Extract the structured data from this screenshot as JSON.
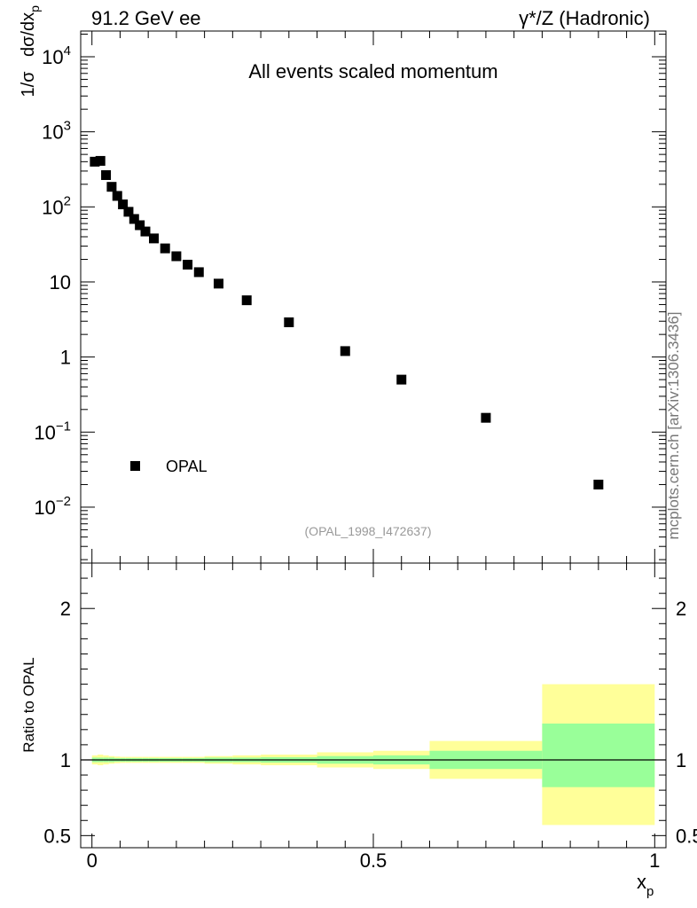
{
  "header": {
    "left": "91.2 GeV ee",
    "right": "γ*/Z (Hadronic)"
  },
  "side_label": "mcplots.cern.ch [arXiv:1306.3436]",
  "chart_data": [
    {
      "type": "scatter",
      "panel": "main",
      "title": "All events scaled momentum",
      "ylabel_parts": [
        "1/σ",
        "dσ/dx",
        "p"
      ],
      "yscale": "log",
      "ylim": [
        0.0018,
        22000
      ],
      "xlim": [
        -0.02,
        1.02
      ],
      "y_ticks": [
        {
          "value": 0.01,
          "base": "10",
          "exp": "−2"
        },
        {
          "value": 0.1,
          "base": "10",
          "exp": "−1"
        },
        {
          "value": 1,
          "base": "1",
          "exp": ""
        },
        {
          "value": 10,
          "base": "10",
          "exp": ""
        },
        {
          "value": 100,
          "base": "10",
          "exp": "2"
        },
        {
          "value": 1000,
          "base": "10",
          "exp": "3"
        },
        {
          "value": 10000,
          "base": "10",
          "exp": "4"
        }
      ],
      "series": [
        {
          "name": "OPAL",
          "marker": "square",
          "points": [
            {
              "x": 0.005,
              "y": 400
            },
            {
              "x": 0.015,
              "y": 410
            },
            {
              "x": 0.025,
              "y": 265
            },
            {
              "x": 0.035,
              "y": 185
            },
            {
              "x": 0.045,
              "y": 140
            },
            {
              "x": 0.055,
              "y": 108
            },
            {
              "x": 0.065,
              "y": 86
            },
            {
              "x": 0.075,
              "y": 69
            },
            {
              "x": 0.085,
              "y": 57
            },
            {
              "x": 0.095,
              "y": 47
            },
            {
              "x": 0.11,
              "y": 38
            },
            {
              "x": 0.13,
              "y": 28
            },
            {
              "x": 0.15,
              "y": 22
            },
            {
              "x": 0.17,
              "y": 17
            },
            {
              "x": 0.19,
              "y": 13.5
            },
            {
              "x": 0.225,
              "y": 9.5
            },
            {
              "x": 0.275,
              "y": 5.7
            },
            {
              "x": 0.35,
              "y": 2.9
            },
            {
              "x": 0.45,
              "y": 1.2
            },
            {
              "x": 0.55,
              "y": 0.5
            },
            {
              "x": 0.7,
              "y": 0.155
            },
            {
              "x": 0.9,
              "y": 0.02
            }
          ]
        }
      ],
      "legend": {
        "label": "OPAL",
        "position": "bottom-left"
      },
      "annotation": "(OPAL_1998_I472637)"
    },
    {
      "type": "area",
      "panel": "ratio",
      "ylabel": "Ratio to OPAL",
      "ylim": [
        0.42,
        2.3
      ],
      "xlim": [
        -0.02,
        1.02
      ],
      "xlabel": "x",
      "xlabel_sub": "p",
      "x_ticks": [
        {
          "value": 0,
          "label": "0"
        },
        {
          "value": 0.5,
          "label": "0.5"
        },
        {
          "value": 1,
          "label": "1"
        }
      ],
      "y_ticks": [
        {
          "value": 0.5,
          "label": "0.5"
        },
        {
          "value": 1,
          "label": "1"
        },
        {
          "value": 2,
          "label": "2"
        }
      ],
      "reference_line": 1,
      "band_colors": {
        "inner": "#99ff99",
        "outer": "#ffff99"
      },
      "bands": [
        {
          "x0": 0.0,
          "x1": 0.01,
          "inner": [
            0.985,
            1.015
          ],
          "outer": [
            0.97,
            1.03
          ]
        },
        {
          "x0": 0.01,
          "x1": 0.02,
          "inner": [
            0.985,
            1.015
          ],
          "outer": [
            0.965,
            1.035
          ]
        },
        {
          "x0": 0.02,
          "x1": 0.03,
          "inner": [
            0.985,
            1.015
          ],
          "outer": [
            0.97,
            1.03
          ]
        },
        {
          "x0": 0.03,
          "x1": 0.04,
          "inner": [
            0.985,
            1.015
          ],
          "outer": [
            0.975,
            1.025
          ]
        },
        {
          "x0": 0.04,
          "x1": 0.05,
          "inner": [
            0.988,
            1.012
          ],
          "outer": [
            0.978,
            1.022
          ]
        },
        {
          "x0": 0.05,
          "x1": 0.06,
          "inner": [
            0.988,
            1.012
          ],
          "outer": [
            0.98,
            1.02
          ]
        },
        {
          "x0": 0.06,
          "x1": 0.07,
          "inner": [
            0.988,
            1.012
          ],
          "outer": [
            0.98,
            1.02
          ]
        },
        {
          "x0": 0.07,
          "x1": 0.08,
          "inner": [
            0.988,
            1.012
          ],
          "outer": [
            0.98,
            1.02
          ]
        },
        {
          "x0": 0.08,
          "x1": 0.09,
          "inner": [
            0.988,
            1.012
          ],
          "outer": [
            0.98,
            1.02
          ]
        },
        {
          "x0": 0.09,
          "x1": 0.1,
          "inner": [
            0.988,
            1.012
          ],
          "outer": [
            0.98,
            1.02
          ]
        },
        {
          "x0": 0.1,
          "x1": 0.12,
          "inner": [
            0.988,
            1.012
          ],
          "outer": [
            0.98,
            1.02
          ]
        },
        {
          "x0": 0.12,
          "x1": 0.14,
          "inner": [
            0.988,
            1.012
          ],
          "outer": [
            0.98,
            1.02
          ]
        },
        {
          "x0": 0.14,
          "x1": 0.16,
          "inner": [
            0.988,
            1.012
          ],
          "outer": [
            0.98,
            1.02
          ]
        },
        {
          "x0": 0.16,
          "x1": 0.18,
          "inner": [
            0.988,
            1.012
          ],
          "outer": [
            0.98,
            1.02
          ]
        },
        {
          "x0": 0.18,
          "x1": 0.2,
          "inner": [
            0.988,
            1.012
          ],
          "outer": [
            0.98,
            1.02
          ]
        },
        {
          "x0": 0.2,
          "x1": 0.25,
          "inner": [
            0.985,
            1.015
          ],
          "outer": [
            0.975,
            1.025
          ]
        },
        {
          "x0": 0.25,
          "x1": 0.3,
          "inner": [
            0.985,
            1.015
          ],
          "outer": [
            0.97,
            1.03
          ]
        },
        {
          "x0": 0.3,
          "x1": 0.4,
          "inner": [
            0.982,
            1.018
          ],
          "outer": [
            0.965,
            1.035
          ]
        },
        {
          "x0": 0.4,
          "x1": 0.5,
          "inner": [
            0.975,
            1.025
          ],
          "outer": [
            0.95,
            1.05
          ]
        },
        {
          "x0": 0.5,
          "x1": 0.6,
          "inner": [
            0.97,
            1.03
          ],
          "outer": [
            0.94,
            1.06
          ]
        },
        {
          "x0": 0.6,
          "x1": 0.8,
          "inner": [
            0.94,
            1.06
          ],
          "outer": [
            0.875,
            1.125
          ]
        },
        {
          "x0": 0.8,
          "x1": 1.0,
          "inner": [
            0.82,
            1.24
          ],
          "outer": [
            0.57,
            1.5
          ]
        }
      ]
    }
  ]
}
